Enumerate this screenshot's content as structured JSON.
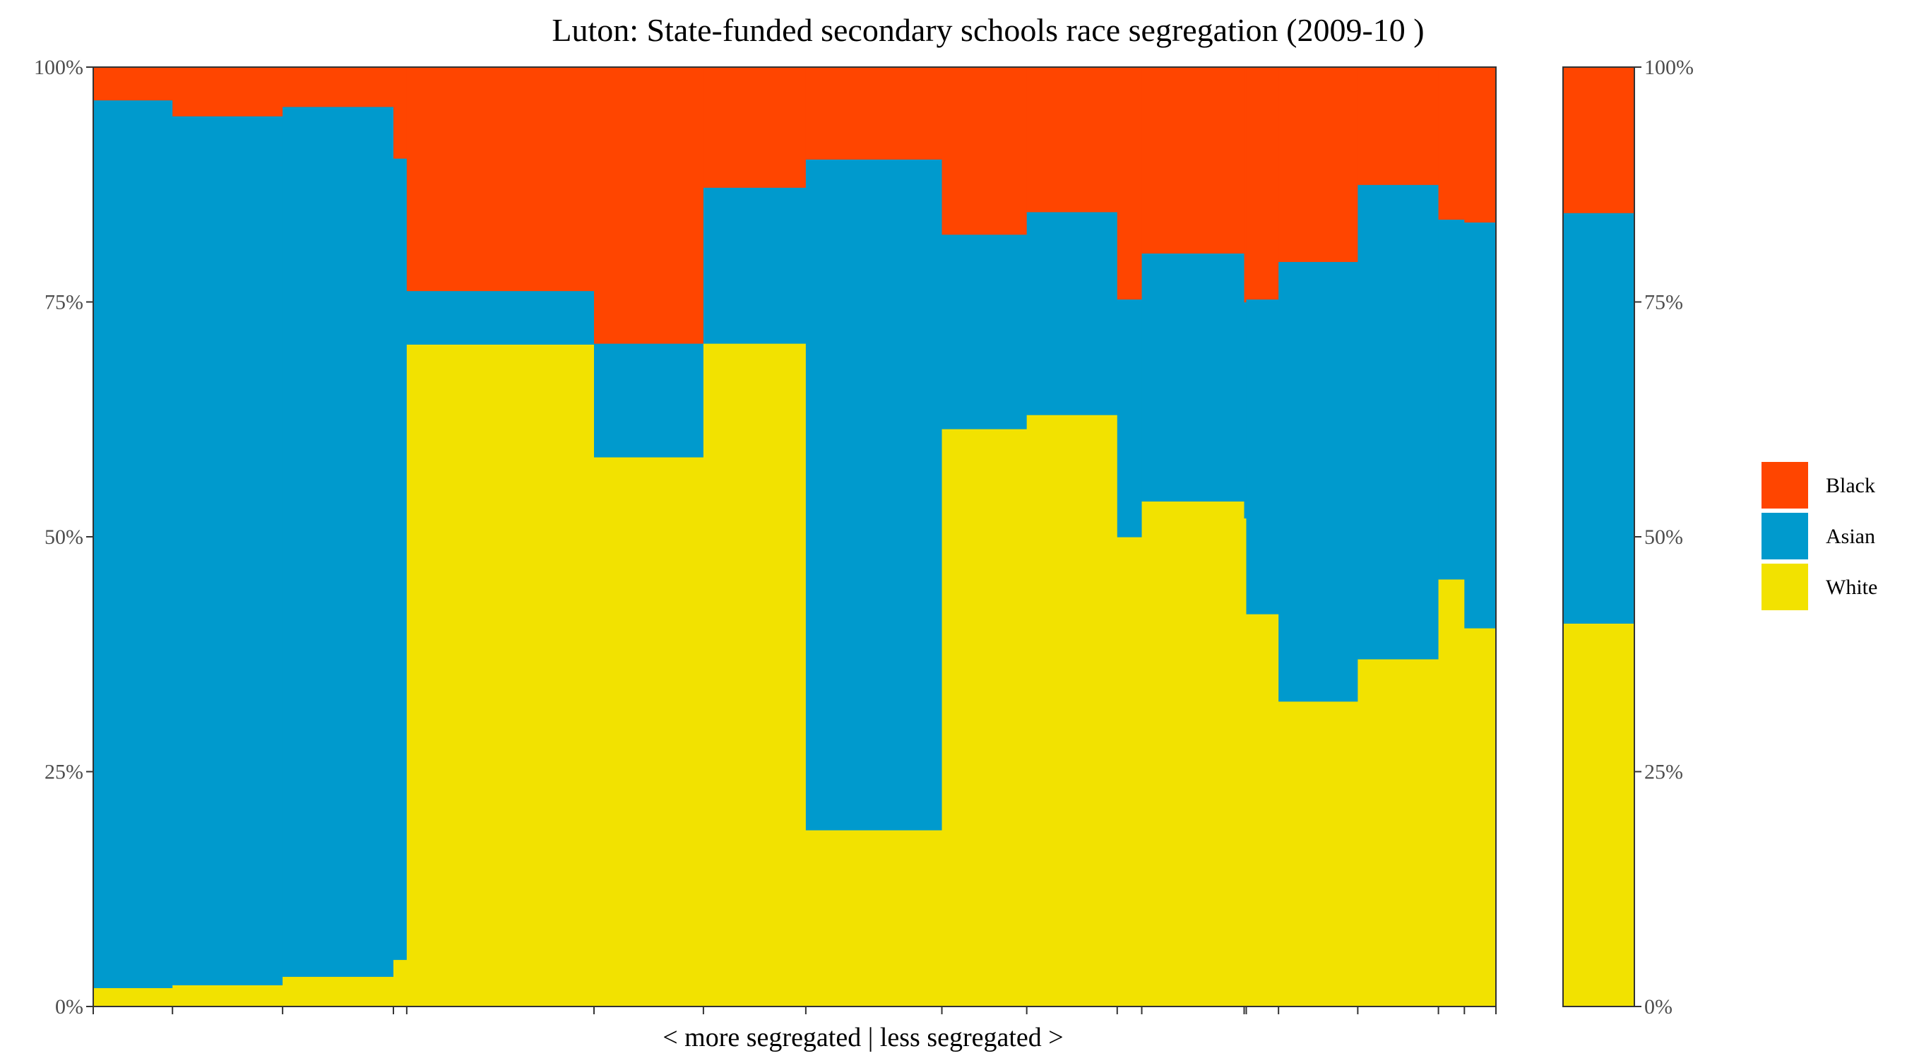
{
  "chart_data": {
    "type": "bar",
    "stacked": true,
    "variable_width": true,
    "title": "Luton: State-funded secondary schools race segregation (2009-10 )",
    "xlabel": "< more segregated | less segregated >",
    "ylabel": "",
    "ylim": [
      0,
      1
    ],
    "y_ticks": [
      "0%",
      "25%",
      "50%",
      "75%",
      "100%"
    ],
    "y_tick_values": [
      0,
      0.25,
      0.5,
      0.75,
      1
    ],
    "grid": false,
    "legend_position": "right",
    "series": [
      {
        "name": "White",
        "color": "#F2E200"
      },
      {
        "name": "Asian",
        "color": "#009ACD"
      },
      {
        "name": "Black",
        "color": "#FF4500"
      }
    ],
    "legend_order": [
      "Black",
      "Asian",
      "White"
    ],
    "schools": [
      {
        "share": 0.0565,
        "white": 0.02,
        "asian": 0.945,
        "black": 0.035
      },
      {
        "share": 0.0785,
        "white": 0.023,
        "asian": 0.925,
        "black": 0.052
      },
      {
        "share": 0.079,
        "white": 0.032,
        "asian": 0.926,
        "black": 0.042
      },
      {
        "share": 0.0095,
        "white": 0.05,
        "asian": 0.853,
        "black": 0.097
      },
      {
        "share": 0.1335,
        "white": 0.705,
        "asian": 0.057,
        "black": 0.238
      },
      {
        "share": 0.078,
        "white": 0.585,
        "asian": 0.121,
        "black": 0.294
      },
      {
        "share": 0.073,
        "white": 0.706,
        "asian": 0.166,
        "black": 0.128
      },
      {
        "share": 0.097,
        "white": 0.188,
        "asian": 0.714,
        "black": 0.098
      },
      {
        "share": 0.0605,
        "white": 0.615,
        "asian": 0.207,
        "black": 0.178
      },
      {
        "share": 0.0645,
        "white": 0.63,
        "asian": 0.216,
        "black": 0.154
      },
      {
        "share": 0.0175,
        "white": 0.5,
        "asian": 0.253,
        "black": 0.247
      },
      {
        "share": 0.073,
        "white": 0.538,
        "asian": 0.264,
        "black": 0.198
      },
      {
        "share": 0.0015,
        "white": 0.52,
        "asian": 0.23,
        "black": 0.25
      },
      {
        "share": 0.023,
        "white": 0.418,
        "asian": 0.335,
        "black": 0.247
      },
      {
        "share": 0.0565,
        "white": 0.325,
        "asian": 0.468,
        "black": 0.207
      },
      {
        "share": 0.0575,
        "white": 0.37,
        "asian": 0.505,
        "black": 0.125
      },
      {
        "share": 0.0185,
        "white": 0.455,
        "asian": 0.383,
        "black": 0.162
      },
      {
        "share": 0.0225,
        "white": 0.403,
        "asian": 0.432,
        "black": 0.165
      }
    ],
    "overall": {
      "white": 0.408,
      "asian": 0.437,
      "black": 0.155
    }
  }
}
